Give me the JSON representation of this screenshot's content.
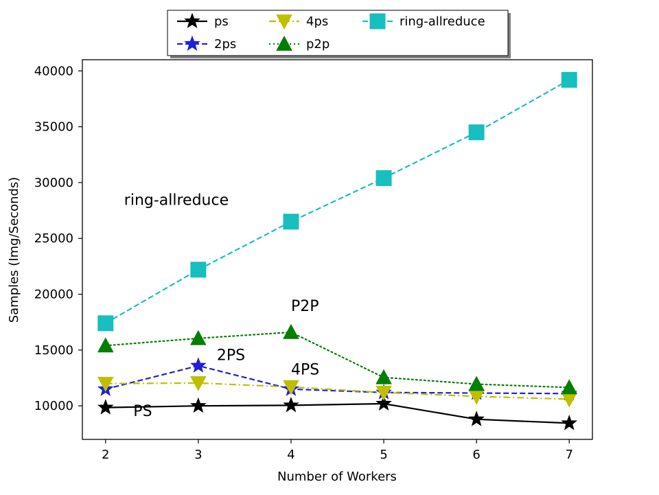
{
  "chart_data": {
    "type": "line",
    "xlabel": "Number of Workers",
    "ylabel": "Samples (Img/Seconds)",
    "x": [
      2,
      3,
      4,
      5,
      6,
      7
    ],
    "xlim": [
      1.75,
      7.25
    ],
    "ylim": [
      7000,
      41000
    ],
    "x_ticks": [
      2,
      3,
      4,
      5,
      6,
      7
    ],
    "y_ticks": [
      10000,
      15000,
      20000,
      25000,
      30000,
      35000,
      40000
    ],
    "grid": false,
    "legend_position": "top-center, above plot",
    "series": [
      {
        "name": "ps",
        "values": [
          9850,
          10000,
          10050,
          10200,
          8800,
          8450
        ],
        "color": "#000000",
        "dash": "solid",
        "marker": "star-filled"
      },
      {
        "name": "2ps",
        "values": [
          11500,
          13600,
          11500,
          11200,
          11150,
          11100
        ],
        "color": "#1f1fd8",
        "dash": "dashed",
        "marker": "star-filled"
      },
      {
        "name": "4ps",
        "values": [
          12000,
          12050,
          11700,
          11200,
          10850,
          10600
        ],
        "color": "#bfbf00",
        "dash": "dashdot",
        "marker": "triangle-down"
      },
      {
        "name": "p2p",
        "values": [
          15400,
          16050,
          16600,
          12550,
          11950,
          11650
        ],
        "color": "#007f00",
        "dash": "dotted",
        "marker": "triangle-up"
      },
      {
        "name": "ring-allreduce",
        "values": [
          17400,
          22200,
          26500,
          30400,
          34500,
          39200
        ],
        "color": "#17bfbf",
        "dash": "dashed",
        "marker": "square"
      }
    ],
    "annotations": [
      {
        "text": "ring-allreduce",
        "x": 2.2,
        "y": 28000
      },
      {
        "text": "P2P",
        "x": 4.0,
        "y": 18500
      },
      {
        "text": "2PS",
        "x": 3.2,
        "y": 14100
      },
      {
        "text": "4PS",
        "x": 4.0,
        "y": 12800
      },
      {
        "text": "PS",
        "x": 2.3,
        "y": 9100
      }
    ]
  }
}
